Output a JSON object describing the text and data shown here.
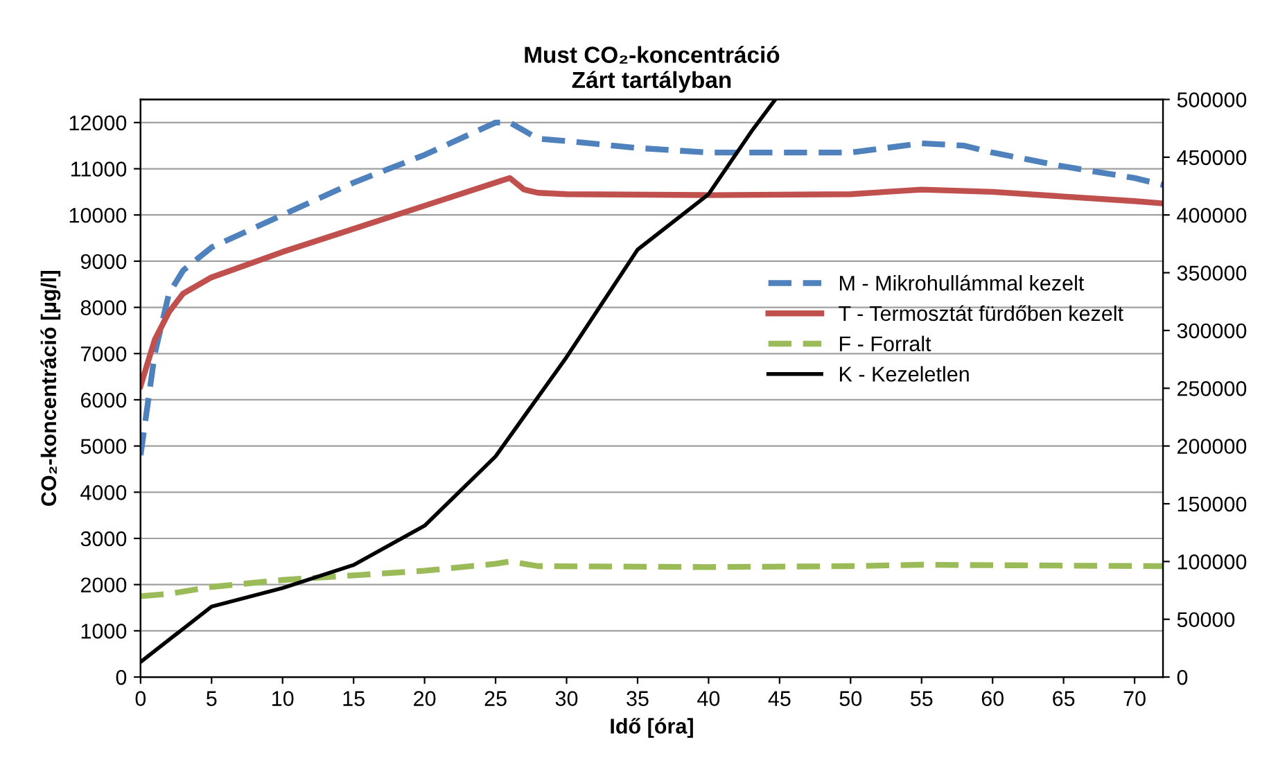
{
  "chart_data": {
    "type": "line",
    "title": "Must CO₂-koncentráció\nZárt tartályban",
    "xlabel": "Idő [óra]",
    "ylabel": "CO₂-koncentráció [µg/l]",
    "xlim": [
      0,
      72
    ],
    "xticks": [
      0,
      5,
      10,
      15,
      20,
      25,
      30,
      35,
      40,
      45,
      50,
      55,
      60,
      65,
      70
    ],
    "ylim": [
      0,
      12500
    ],
    "yticks": [
      0,
      1000,
      2000,
      3000,
      4000,
      5000,
      6000,
      7000,
      8000,
      9000,
      10000,
      11000,
      12000
    ],
    "y2lim": [
      0,
      500000
    ],
    "y2ticks": [
      0,
      50000,
      100000,
      150000,
      200000,
      250000,
      300000,
      350000,
      400000,
      450000,
      500000
    ],
    "grid": "y",
    "legend": "center right",
    "series": [
      {
        "name": "M - Mikrohullámmal kezelt",
        "color": "#4f81bd",
        "line_style": "dashed",
        "x": [
          0,
          1,
          2,
          3,
          5,
          10,
          15,
          20,
          25,
          26,
          28,
          30,
          35,
          40,
          45,
          50,
          55,
          58,
          60,
          65,
          70,
          72
        ],
        "values": [
          4800,
          7000,
          8300,
          8800,
          9300,
          10000,
          10700,
          11300,
          12000,
          12000,
          11650,
          11600,
          11450,
          11350,
          11350,
          11350,
          11550,
          11500,
          11350,
          11050,
          10800,
          10650
        ]
      },
      {
        "name": "T - Termosztát fürdőben kezelt",
        "color": "#c0504d",
        "line_style": "solid",
        "x": [
          0,
          1,
          2,
          3,
          5,
          10,
          15,
          20,
          25,
          26,
          27,
          28,
          30,
          40,
          50,
          55,
          60,
          65,
          70,
          72
        ],
        "values": [
          6300,
          7300,
          7900,
          8300,
          8650,
          9200,
          9700,
          10200,
          10700,
          10800,
          10550,
          10480,
          10450,
          10430,
          10450,
          10550,
          10500,
          10400,
          10300,
          10250
        ]
      },
      {
        "name": "F - Forralt",
        "color": "#9bbb59",
        "line_style": "dashed",
        "x": [
          0,
          2,
          5,
          10,
          15,
          20,
          25,
          26,
          28,
          40,
          50,
          55,
          60,
          72
        ],
        "values": [
          1750,
          1800,
          1950,
          2100,
          2200,
          2300,
          2450,
          2500,
          2400,
          2380,
          2400,
          2430,
          2420,
          2400
        ]
      },
      {
        "name": "K - Kezeletlen",
        "color": "#000000",
        "line_style": "solid",
        "axis": "y2",
        "x": [
          0,
          5,
          10,
          15,
          20,
          25,
          30,
          35,
          40,
          43,
          44.7
        ],
        "values": [
          13000,
          61000,
          77000,
          97000,
          131000,
          191000,
          277000,
          370000,
          418000,
          472000,
          500000
        ]
      }
    ]
  }
}
